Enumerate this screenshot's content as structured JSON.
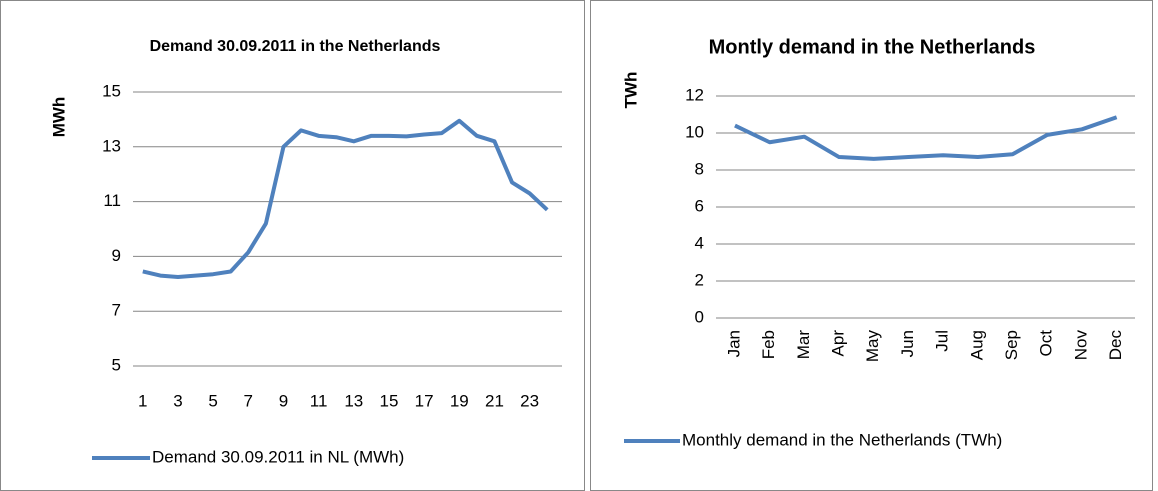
{
  "chart_data": [
    {
      "type": "line",
      "title": "Demand 30.09.2011 in the Netherlands",
      "y_label": "MWh",
      "categories": [
        "1",
        null,
        "3",
        null,
        "5",
        null,
        "7",
        null,
        "9",
        null,
        "11",
        null,
        "13",
        null,
        "15",
        null,
        "17",
        null,
        "19",
        null,
        "21",
        null,
        "23",
        null
      ],
      "series": [
        {
          "name": "Demand 30.09.2011 in NL (MWh)",
          "color": "#4f81bd",
          "values": [
            8.45,
            8.3,
            8.25,
            8.3,
            8.35,
            8.45,
            9.15,
            10.2,
            13.0,
            13.6,
            13.4,
            13.35,
            13.2,
            13.4,
            13.4,
            13.38,
            13.45,
            13.5,
            13.95,
            13.4,
            13.2,
            11.7,
            11.3,
            10.7
          ]
        }
      ],
      "ylim": [
        5,
        15
      ],
      "yticks": [
        5,
        7,
        9,
        11,
        13,
        15
      ],
      "grid": true,
      "legend": "bottom"
    },
    {
      "type": "line",
      "title": "Montly demand in the Netherlands",
      "y_label": "TWh",
      "categories": [
        "Jan",
        "Feb",
        "Mar",
        "Apr",
        "May",
        "Jun",
        "Jul",
        "Aug",
        "Sep",
        "Oct",
        "Nov",
        "Dec"
      ],
      "series": [
        {
          "name": "Monthly demand in the Netherlands (TWh)",
          "color": "#4f81bd",
          "values": [
            10.4,
            9.5,
            9.8,
            8.7,
            8.6,
            8.7,
            8.8,
            8.7,
            8.85,
            9.9,
            10.2,
            10.85
          ]
        }
      ],
      "ylim": [
        0,
        12
      ],
      "yticks": [
        0,
        2,
        4,
        6,
        8,
        10,
        12
      ],
      "grid": true,
      "legend": "bottom"
    }
  ]
}
